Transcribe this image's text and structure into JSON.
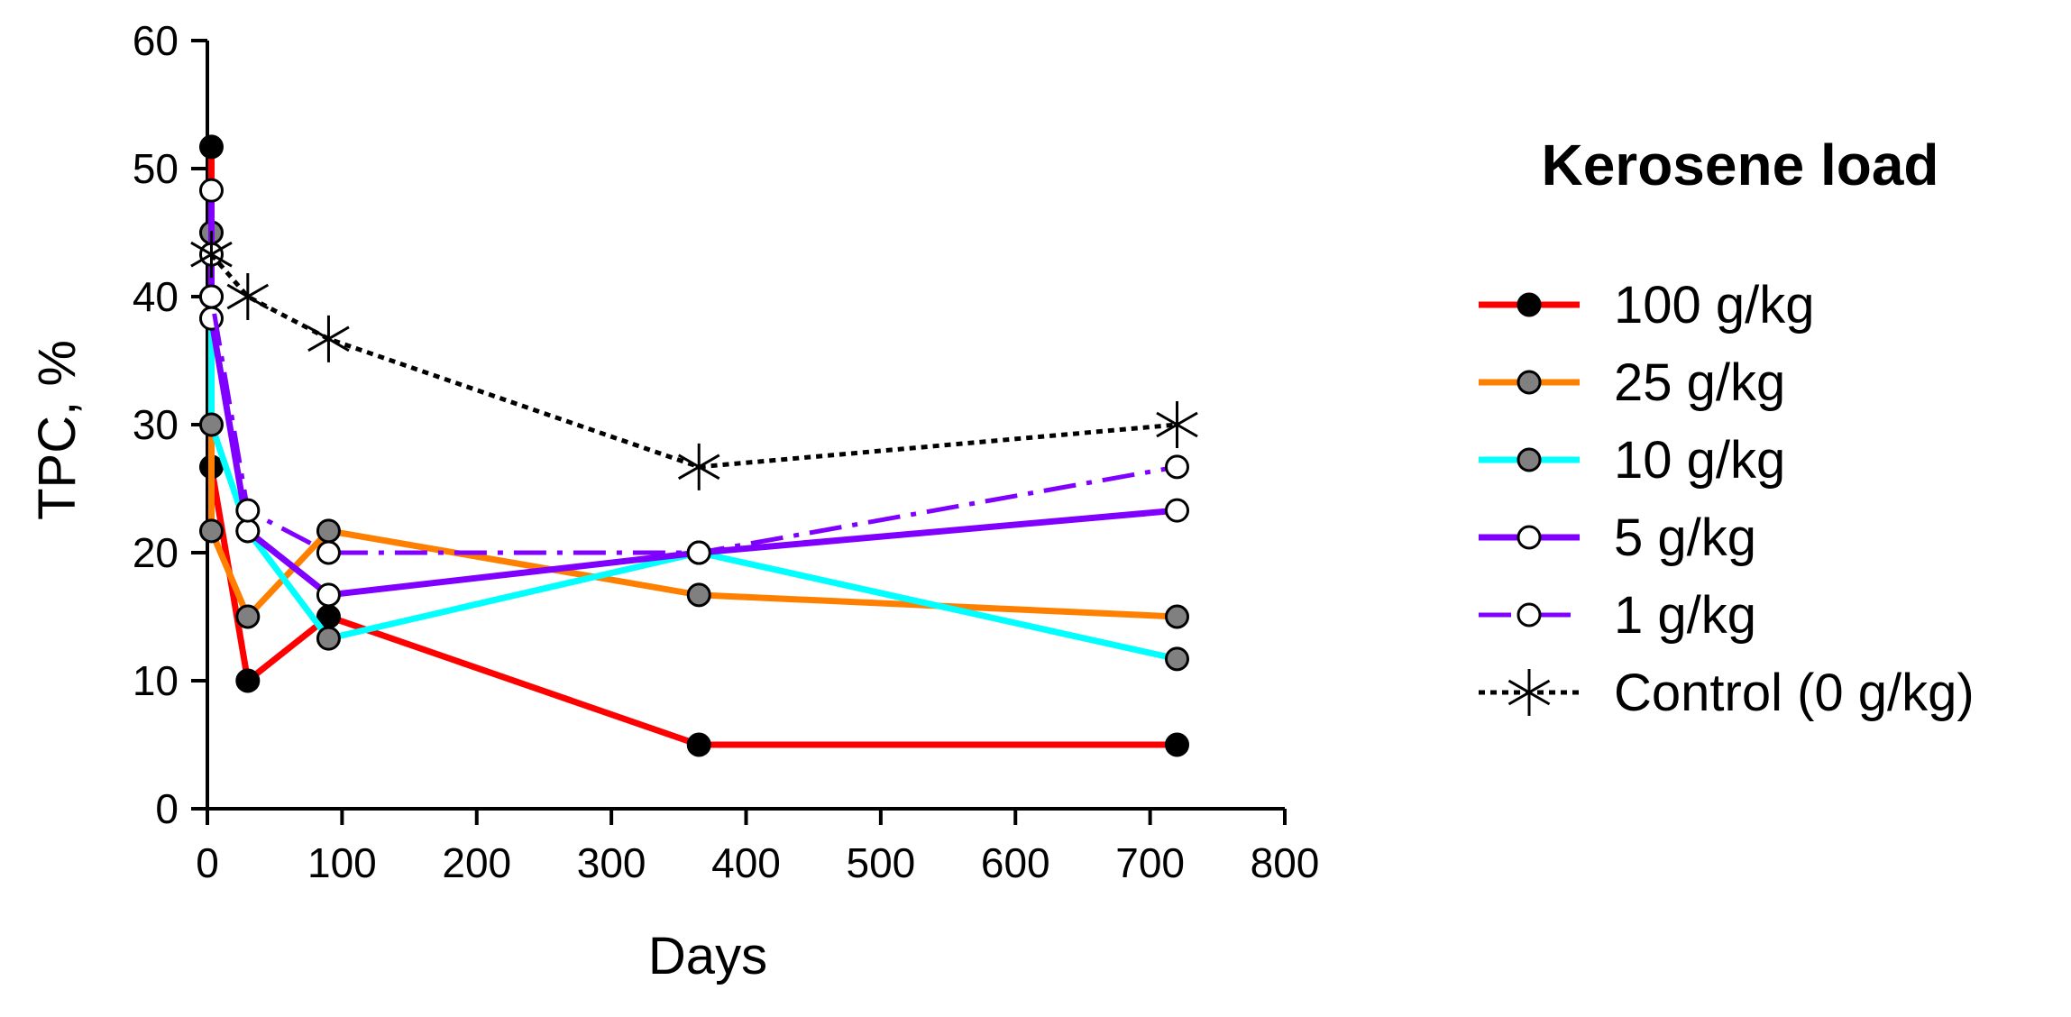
{
  "chart_data": {
    "type": "line",
    "title": "",
    "xlabel": "Days",
    "ylabel": "TPC, %",
    "xlim": [
      0,
      800
    ],
    "ylim": [
      0,
      60
    ],
    "xticks": [
      0,
      100,
      200,
      300,
      400,
      500,
      600,
      700,
      800
    ],
    "yticks": [
      0,
      10,
      20,
      30,
      40,
      50,
      60
    ],
    "grid": false,
    "legend": {
      "title": "Kerosene load",
      "position": "right"
    },
    "series": [
      {
        "name": "100 g/kg",
        "color": "#ff0000",
        "line_style": "solid",
        "marker": "filled-circle",
        "marker_fill": "#000000",
        "x": [
          3,
          3,
          30,
          90,
          365,
          720
        ],
        "y": [
          51.7,
          26.7,
          10,
          15,
          5,
          5
        ]
      },
      {
        "name": "25 g/kg",
        "color": "#ff8000",
        "line_style": "solid",
        "marker": "filled-circle",
        "marker_fill": "#808080",
        "x": [
          3,
          3,
          30,
          90,
          365,
          720
        ],
        "y": [
          45,
          21.7,
          15,
          21.7,
          16.7,
          15
        ]
      },
      {
        "name": "10 g/kg",
        "color": "#00ffff",
        "line_style": "solid",
        "marker": "filled-circle",
        "marker_fill": "#808080",
        "x": [
          3,
          3,
          30,
          90,
          365,
          720
        ],
        "y": [
          40,
          30,
          21.7,
          13.3,
          20,
          11.7
        ]
      },
      {
        "name": "5 g/kg",
        "color": "#8000ff",
        "line_style": "solid",
        "marker": "open-circle",
        "marker_fill": "#ffffff",
        "x": [
          3,
          3,
          30,
          90,
          365,
          720
        ],
        "y": [
          48.3,
          38.3,
          21.7,
          16.7,
          20,
          23.3
        ]
      },
      {
        "name": "1 g/kg",
        "color": "#8000ff",
        "line_style": "dash-dot",
        "marker": "open-circle",
        "marker_fill": "#ffffff",
        "x": [
          3,
          3,
          30,
          90,
          365,
          720
        ],
        "y": [
          43.3,
          40,
          23.3,
          20,
          20,
          26.7
        ]
      },
      {
        "name": "Control (0 g/kg)",
        "color": "#000000",
        "line_style": "dotted",
        "marker": "asterisk",
        "marker_fill": "#000000",
        "x": [
          3,
          30,
          90,
          365,
          720
        ],
        "y": [
          43.3,
          40,
          36.7,
          26.7,
          30
        ]
      }
    ]
  }
}
